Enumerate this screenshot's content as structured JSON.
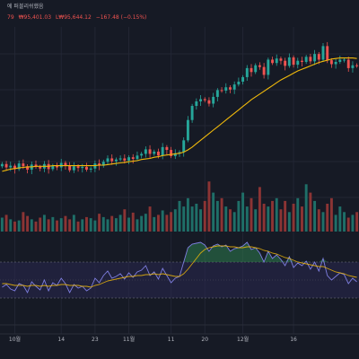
{
  "header": {
    "title_fragment": "에 퍼블리쉬했음",
    "ohlc": [
      "79",
      "₩95,401.03",
      "L₩95,644.12",
      "−167.48 (−0.15%)"
    ]
  },
  "colors": {
    "background": "#161a25",
    "up": "#26a69a",
    "down": "#ef5350",
    "ma_line": "#f0b90b",
    "rsi_line": "#7e7ee0",
    "rsi_signal": "#f0b90b",
    "rsi_band": "#2a2850",
    "volume_up": "#1f6f68",
    "volume_down": "#8c3434"
  },
  "chart_data": [
    {
      "type": "candlestick",
      "categories": [
        "10월",
        "14",
        "23",
        "11월",
        "11",
        "20",
        "12월",
        "16"
      ],
      "ylim": [
        70000,
        105000
      ],
      "candles_close": [
        80700,
        80100,
        80400,
        79800,
        80800,
        80300,
        79700,
        80600,
        80200,
        79900,
        80700,
        79800,
        80400,
        80100,
        80900,
        80500,
        79600,
        80300,
        80000,
        80200,
        79700,
        79900,
        80800,
        80400,
        81100,
        81700,
        81200,
        81500,
        81700,
        81300,
        81900,
        81600,
        82200,
        82500,
        83300,
        82500,
        82900,
        82200,
        83700,
        83200,
        82100,
        82600,
        82800,
        84900,
        88500,
        91000,
        91800,
        92200,
        92000,
        91400,
        92600,
        93800,
        93700,
        94300,
        93900,
        94800,
        95300,
        96100,
        97700,
        97000,
        98200,
        97900,
        96500,
        99200,
        98600,
        99400,
        99000,
        98100,
        99600,
        98300,
        99000,
        98800,
        99700,
        98900,
        100200,
        99200,
        101600,
        99100,
        98400,
        98800,
        99200,
        99200,
        97700,
        98200,
        98100
      ],
      "ma_line": [
        79400,
        79600,
        79800,
        79900,
        80000,
        80100,
        80200,
        80200,
        80300,
        80300,
        80300,
        80300,
        80400,
        80400,
        80400,
        80400,
        80400,
        80400,
        80400,
        80400,
        80400,
        80400,
        80400,
        80500,
        80500,
        80600,
        80700,
        80800,
        80900,
        81000,
        81100,
        81200,
        81300,
        81500,
        81600,
        81700,
        81900,
        82000,
        82200,
        82300,
        82400,
        82500,
        82600,
        82800,
        83200,
        83700,
        84300,
        84900,
        85500,
        86100,
        86700,
        87300,
        87900,
        88500,
        89100,
        89700,
        90300,
        90900,
        91500,
        92100,
        92600,
        93100,
        93600,
        94100,
        94600,
        95100,
        95600,
        96000,
        96400,
        96800,
        97200,
        97500,
        97800,
        98100,
        98400,
        98700,
        98900,
        99100,
        99300,
        99400,
        99500,
        99500,
        99500,
        99500,
        99400
      ],
      "volume": [
        0.25,
        0.3,
        0.22,
        0.18,
        0.2,
        0.35,
        0.28,
        0.22,
        0.18,
        0.25,
        0.3,
        0.22,
        0.26,
        0.2,
        0.24,
        0.28,
        0.22,
        0.3,
        0.18,
        0.22,
        0.26,
        0.24,
        0.2,
        0.32,
        0.26,
        0.22,
        0.28,
        0.24,
        0.3,
        0.4,
        0.25,
        0.34,
        0.22,
        0.28,
        0.32,
        0.45,
        0.26,
        0.3,
        0.38,
        0.3,
        0.35,
        0.4,
        0.55,
        0.45,
        0.6,
        0.45,
        0.5,
        0.4,
        0.55,
        0.9,
        0.7,
        0.55,
        0.6,
        0.45,
        0.4,
        0.35,
        0.55,
        0.7,
        0.45,
        0.6,
        0.4,
        0.8,
        0.5,
        0.45,
        0.55,
        0.6,
        0.4,
        0.55,
        0.35,
        0.5,
        0.6,
        0.45,
        0.85,
        0.7,
        0.55,
        0.4,
        0.35,
        0.5,
        0.6,
        0.3,
        0.45,
        0.35,
        0.25,
        0.3,
        0.35
      ],
      "rsi": [
        42,
        45,
        40,
        38,
        46,
        44,
        36,
        48,
        43,
        39,
        50,
        38,
        47,
        44,
        52,
        46,
        36,
        45,
        41,
        43,
        38,
        41,
        52,
        47,
        55,
        60,
        52,
        54,
        57,
        51,
        58,
        53,
        59,
        61,
        66,
        55,
        59,
        51,
        63,
        55,
        47,
        52,
        54,
        70,
        86,
        90,
        91,
        92,
        89,
        82,
        88,
        90,
        87,
        89,
        82,
        85,
        86,
        88,
        92,
        84,
        86,
        80,
        70,
        82,
        74,
        78,
        73,
        66,
        76,
        64,
        69,
        66,
        71,
        62,
        70,
        60,
        74,
        55,
        50,
        54,
        58,
        56,
        46,
        52,
        48
      ],
      "rsi_signal": [
        46,
        46,
        45,
        44,
        44,
        44,
        43,
        44,
        44,
        43,
        44,
        43,
        44,
        44,
        45,
        45,
        44,
        44,
        44,
        43,
        43,
        42,
        44,
        45,
        47,
        49,
        50,
        51,
        52,
        53,
        54,
        54,
        55,
        55,
        56,
        56,
        57,
        56,
        57,
        56,
        55,
        54,
        54,
        57,
        62,
        68,
        74,
        80,
        84,
        86,
        87,
        88,
        88,
        88,
        87,
        87,
        86,
        86,
        87,
        87,
        86,
        85,
        83,
        82,
        80,
        79,
        77,
        75,
        74,
        72,
        70,
        69,
        68,
        67,
        66,
        65,
        65,
        63,
        61,
        59,
        58,
        57,
        55,
        54,
        53
      ],
      "rsi_levels": {
        "upper": 70,
        "lower": 30
      }
    }
  ]
}
